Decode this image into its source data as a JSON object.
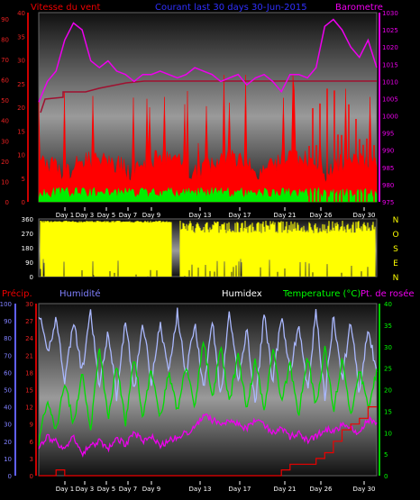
{
  "title": "Courant last 30 days 30-Jun-2015",
  "colors": {
    "wind_gust": "#ff0000",
    "wind_avg": "#00ee00",
    "barometer": "#ee00ee",
    "wind_dir": "#ffff00",
    "humidity": "#aab8ff",
    "temperature": "#00dd00",
    "dewpoint": "#ee00ee",
    "rain": "#ee0000",
    "humidex": "#ffffff",
    "left_axis_precip": "#8080ff",
    "right_axis_temp": "#00ff00"
  },
  "chart_data": [
    {
      "type": "line",
      "title": "Courant last 30 days 30-Jun-2015",
      "x_ticks": [
        "Day 1",
        "Day 3",
        "Day 5",
        "Day 7",
        "Day 9",
        "Day 13",
        "Day 17",
        "Day 21",
        "Day 26",
        "Day 30"
      ],
      "y_left_label": "Vitesse du vent",
      "y_left_ticks": [
        "0",
        "5",
        "10",
        "15",
        "20",
        "25",
        "30",
        "35",
        "40"
      ],
      "y_left_outer_ticks": [
        "0",
        "10",
        "20",
        "30",
        "40",
        "50",
        "60",
        "70",
        "80",
        "90"
      ],
      "y_right_label": "Barometre",
      "y_right_ticks": [
        "975",
        "980",
        "985",
        "990",
        "995",
        "1000",
        "1005",
        "1010",
        "1015",
        "1020",
        "1025",
        "1030"
      ],
      "ylim_left": [
        0,
        40
      ],
      "ylim_right": [
        975,
        1030
      ],
      "series": [
        {
          "name": "Barometre",
          "axis": "right",
          "values": [
            1004,
            1010,
            1013,
            1022,
            1027,
            1025,
            1016,
            1014,
            1016,
            1013,
            1012,
            1010,
            1012,
            1012,
            1013,
            1012,
            1011,
            1012,
            1014,
            1013,
            1012,
            1010,
            1011,
            1012,
            1009,
            1011,
            1012,
            1010,
            1007,
            1012,
            1012,
            1011,
            1014,
            1026,
            1028,
            1025,
            1020,
            1017,
            1022,
            1014
          ]
        }
      ]
    },
    {
      "type": "line",
      "title": "",
      "x_ticks": [
        "Day 1",
        "Day 3",
        "Day 5",
        "Day 7",
        "Day 9",
        "Day 13",
        "Day 17",
        "Day 21",
        "Day 26",
        "Day 30"
      ],
      "y_left_ticks": [
        "0",
        "90",
        "180",
        "270",
        "360"
      ],
      "y_right_labels": [
        "N",
        "O",
        "S",
        "E",
        "N"
      ],
      "ylim": [
        0,
        360
      ]
    },
    {
      "type": "line",
      "title": "",
      "x_ticks": [
        "Day 1",
        "Day 3",
        "Day 5",
        "Day 7",
        "Day 9",
        "Day 13",
        "Day 17",
        "Day 21",
        "Day 26",
        "Day 30"
      ],
      "y_left_label": "Précip.",
      "y_left_label2": "Humidité",
      "y_left_outer_ticks": [
        "0",
        "10",
        "20",
        "30",
        "40",
        "50",
        "60",
        "70",
        "80",
        "90",
        "100"
      ],
      "y_left_inner_ticks": [
        "0",
        "3",
        "6",
        "9",
        "12",
        "15",
        "18",
        "21",
        "24",
        "27",
        "30"
      ],
      "y_right_label": "Temperature (°C)",
      "y_right_label2": "Pt. de rosée",
      "humidex_label": "Humidex",
      "y_right_ticks": [
        "0",
        "5",
        "10",
        "15",
        "20",
        "25",
        "30",
        "35",
        "40"
      ],
      "ylim_temp": [
        0,
        40
      ],
      "ylim_humidity": [
        0,
        100
      ],
      "series": [
        {
          "name": "Humidité",
          "axis": "humidity",
          "values": [
            95,
            70,
            92,
            55,
            90,
            60,
            95,
            50,
            85,
            45,
            92,
            48,
            90,
            55,
            88,
            60,
            95,
            58,
            90,
            50,
            92,
            45,
            95,
            55,
            85,
            40,
            95,
            55,
            92,
            60,
            88,
            50,
            95,
            45,
            92,
            55,
            90,
            48,
            85,
            60
          ]
        },
        {
          "name": "Temperature (°C)",
          "axis": "temp",
          "values": [
            8,
            18,
            10,
            22,
            12,
            24,
            11,
            30,
            13,
            26,
            12,
            28,
            14,
            25,
            13,
            24,
            15,
            26,
            16,
            32,
            18,
            30,
            17,
            28,
            16,
            27,
            15,
            30,
            17,
            26,
            14,
            28,
            16,
            30,
            15,
            27,
            14,
            25,
            16,
            24
          ]
        },
        {
          "name": "Pt. de rosée",
          "axis": "temp",
          "values": [
            7,
            9,
            8,
            6,
            9,
            5,
            7,
            8,
            6,
            9,
            7,
            10,
            8,
            9,
            7,
            8,
            9,
            10,
            11,
            14,
            13,
            12,
            13,
            12,
            11,
            13,
            12,
            10,
            11,
            9,
            10,
            8,
            9,
            11,
            10,
            12,
            11,
            10,
            13,
            12
          ]
        },
        {
          "name": "Précip.",
          "axis": "rain",
          "values": [
            0,
            0,
            1,
            0,
            0,
            0,
            0,
            0,
            0,
            0,
            0,
            0,
            0,
            0,
            0,
            0,
            0,
            0,
            0,
            0,
            0,
            0,
            0,
            0,
            0,
            0,
            0,
            0,
            1,
            2,
            2,
            2,
            3,
            4,
            6,
            8,
            9,
            10,
            12,
            12
          ]
        }
      ]
    }
  ]
}
